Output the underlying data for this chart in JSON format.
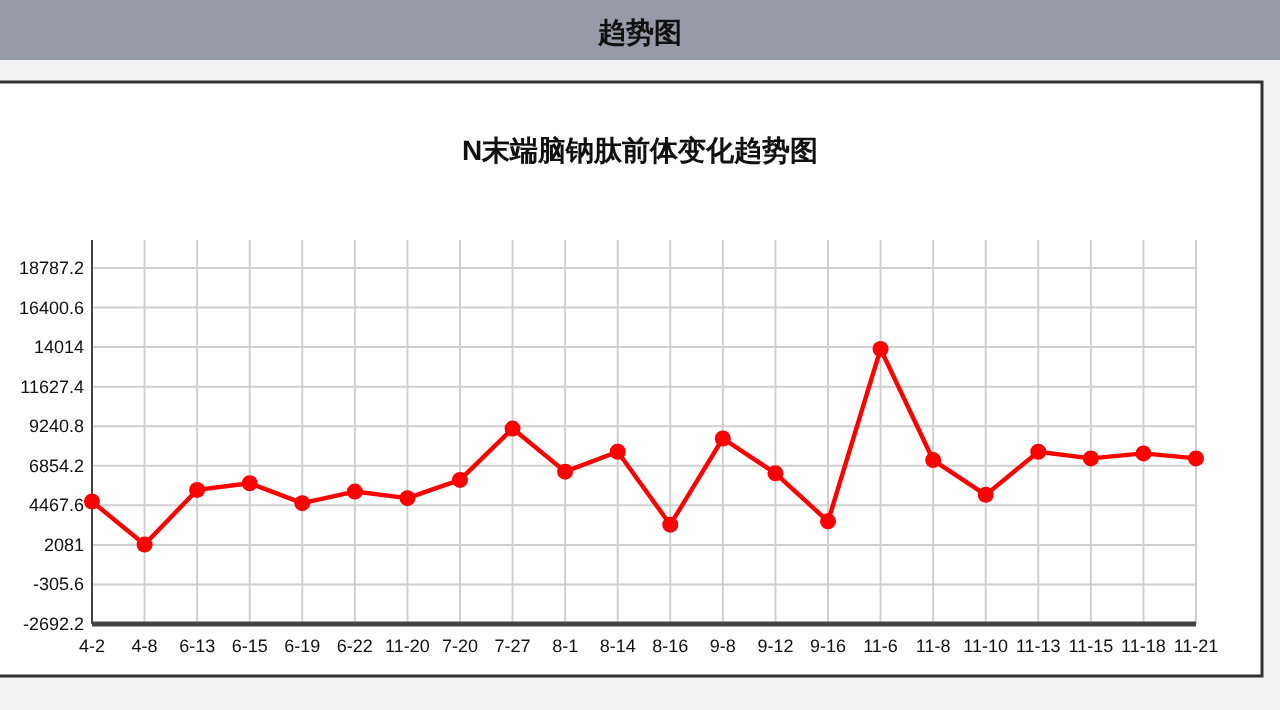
{
  "chart_data": {
    "type": "line",
    "title": "趋势图",
    "subtitle": "N末端脑钠肽前体变化趋势图",
    "categories": [
      "4-2",
      "4-8",
      "6-13",
      "6-15",
      "6-19",
      "6-22",
      "11-20",
      "7-20",
      "7-27",
      "8-1",
      "8-14",
      "8-16",
      "9-8",
      "9-12",
      "9-16",
      "11-6",
      "11-8",
      "11-10",
      "11-13",
      "11-15",
      "11-18",
      "11-21"
    ],
    "series": [
      {
        "color": "#ff0000",
        "values": [
          4700,
          2100,
          5400,
          5800,
          4600,
          5300,
          4900,
          6000,
          9100,
          6500,
          7700,
          3300,
          8500,
          6400,
          3500,
          13900,
          7200,
          5100,
          7700,
          7300,
          7600,
          7300
        ]
      }
    ],
    "ylim": [
      -2692.2,
      18787.2
    ],
    "yticks": [
      -2692.2,
      -305.6,
      2081,
      4467.6,
      6854.2,
      9240.8,
      11627.4,
      14014,
      16400.6,
      18787.2
    ],
    "grid": true,
    "marker": "circle",
    "line_style": "solid"
  }
}
